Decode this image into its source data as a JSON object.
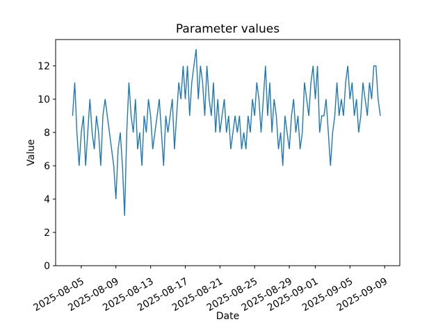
{
  "colors": {
    "line": "#1f77b4",
    "axis": "#000000",
    "background": "#ffffff",
    "text": "#000000"
  },
  "chart_data": {
    "type": "line",
    "title": "Parameter values",
    "xlabel": "Date",
    "ylabel": "Value",
    "grid": false,
    "legend": null,
    "ylim": [
      0,
      13.58
    ],
    "yticks": [
      0,
      2,
      4,
      6,
      8,
      10,
      12
    ],
    "xlim": [
      "2025-08-02T01:00",
      "2025-09-10T18:00"
    ],
    "x_tick_labels": [
      "2025-08-05",
      "2025-08-09",
      "2025-08-13",
      "2025-08-17",
      "2025-08-21",
      "2025-08-25",
      "2025-08-29",
      "2025-09-01",
      "2025-09-05",
      "2025-09-09"
    ],
    "x_start": "2025-08-04T00:00",
    "x_step_hours": 6,
    "values": [
      9,
      11,
      8,
      6,
      8,
      9,
      6,
      8,
      10,
      8,
      7,
      9,
      8,
      6,
      9,
      10,
      9,
      8,
      7,
      6,
      4,
      7,
      8,
      6,
      3,
      8,
      11,
      9,
      8,
      10,
      7,
      8,
      6,
      9,
      8,
      10,
      9,
      7,
      8,
      9,
      10,
      8,
      6,
      9,
      8,
      9,
      10,
      7,
      9,
      11,
      10,
      12,
      10,
      12,
      9,
      11,
      12,
      13,
      10,
      12,
      11,
      9,
      12,
      10,
      9,
      11,
      8,
      10,
      8,
      9,
      10,
      8,
      9,
      7,
      8,
      9,
      8,
      9,
      7,
      8,
      7,
      9,
      8,
      10,
      9,
      11,
      10,
      8,
      10,
      12,
      9,
      11,
      8,
      10,
      9,
      7,
      8,
      6,
      9,
      8,
      7,
      9,
      10,
      8,
      9,
      7,
      8,
      11,
      10,
      9,
      11,
      12,
      10,
      12,
      8,
      9,
      9,
      10,
      8,
      6,
      8,
      9,
      11,
      9,
      10,
      9,
      11,
      12,
      10,
      11,
      9,
      10,
      8,
      9,
      11,
      10,
      9,
      11,
      10,
      12,
      12,
      10,
      9
    ]
  }
}
